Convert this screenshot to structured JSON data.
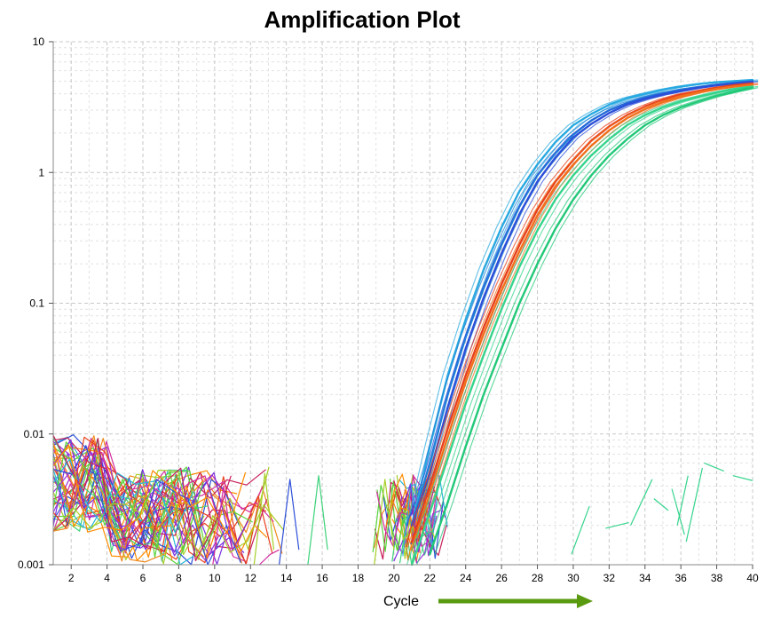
{
  "chart_data": {
    "type": "line",
    "title": "Amplification Plot",
    "xlabel": "Cycle",
    "ylabel": "",
    "xlim": [
      1,
      40
    ],
    "ylim": [
      0.001,
      10
    ],
    "yscale": "log",
    "x_ticks": [
      "2",
      "4",
      "6",
      "8",
      "10",
      "12",
      "14",
      "16",
      "18",
      "20",
      "22",
      "24",
      "26",
      "28",
      "30",
      "32",
      "34",
      "36",
      "38",
      "40"
    ],
    "y_ticks": [
      "0.001",
      "0.01",
      "0.1",
      "1",
      "10"
    ],
    "grid": true,
    "legend": "none",
    "series": [
      {
        "color": "#29a9e0",
        "x": [
          21,
          22,
          23,
          24,
          25,
          26,
          27,
          28,
          29,
          30,
          31,
          32,
          33,
          34,
          35,
          36,
          37,
          38,
          39,
          40
        ],
        "y": [
          0.002,
          0.008,
          0.028,
          0.075,
          0.18,
          0.38,
          0.72,
          1.15,
          1.7,
          2.3,
          2.8,
          3.3,
          3.7,
          4.0,
          4.3,
          4.55,
          4.75,
          4.9,
          5.0,
          5.1
        ]
      },
      {
        "color": "#1f7fd8",
        "x": [
          21,
          22,
          23,
          24,
          25,
          26,
          27,
          28,
          29,
          30,
          31,
          32,
          33,
          34,
          35,
          36,
          37,
          38,
          39,
          40
        ],
        "y": [
          0.002,
          0.006,
          0.02,
          0.055,
          0.13,
          0.28,
          0.55,
          0.95,
          1.4,
          1.95,
          2.5,
          3.0,
          3.4,
          3.75,
          4.05,
          4.3,
          4.5,
          4.7,
          4.85,
          5.0
        ]
      },
      {
        "color": "#2c4fd8",
        "x": [
          21,
          22,
          23,
          24,
          25,
          26,
          27,
          28,
          29,
          30,
          31,
          32,
          33,
          34,
          35,
          36,
          37,
          38,
          39,
          40
        ],
        "y": [
          0.002,
          0.005,
          0.016,
          0.045,
          0.11,
          0.24,
          0.48,
          0.85,
          1.3,
          1.85,
          2.35,
          2.85,
          3.3,
          3.65,
          3.95,
          4.2,
          4.45,
          4.65,
          4.8,
          4.95
        ]
      },
      {
        "color": "#e8401c",
        "x": [
          21,
          22,
          23,
          24,
          25,
          26,
          27,
          28,
          29,
          30,
          31,
          32,
          33,
          34,
          35,
          36,
          37,
          38,
          39,
          40
        ],
        "y": [
          0.0015,
          0.004,
          0.011,
          0.028,
          0.065,
          0.14,
          0.28,
          0.52,
          0.85,
          1.25,
          1.75,
          2.25,
          2.75,
          3.2,
          3.6,
          3.95,
          4.2,
          4.45,
          4.65,
          4.8
        ]
      },
      {
        "color": "#f0701c",
        "x": [
          21,
          22,
          23,
          24,
          25,
          26,
          27,
          28,
          29,
          30,
          31,
          32,
          33,
          34,
          35,
          36,
          37,
          38,
          39,
          40
        ],
        "y": [
          0.0013,
          0.0035,
          0.0095,
          0.025,
          0.058,
          0.125,
          0.25,
          0.47,
          0.78,
          1.15,
          1.6,
          2.1,
          2.6,
          3.05,
          3.45,
          3.8,
          4.1,
          4.35,
          4.55,
          4.7
        ]
      },
      {
        "color": "#35d48c",
        "x": [
          21,
          22,
          23,
          24,
          25,
          26,
          27,
          28,
          29,
          30,
          31,
          32,
          33,
          34,
          35,
          36,
          37,
          38,
          39,
          40
        ],
        "y": [
          0.001,
          0.0025,
          0.0065,
          0.017,
          0.04,
          0.09,
          0.19,
          0.36,
          0.62,
          0.95,
          1.35,
          1.8,
          2.3,
          2.75,
          3.15,
          3.5,
          3.8,
          4.1,
          4.35,
          4.55
        ]
      },
      {
        "color": "#22c878",
        "x": [
          22,
          23,
          24,
          25,
          26,
          27,
          28,
          29,
          30,
          31,
          32,
          33,
          34,
          35,
          36,
          37,
          38,
          39,
          40
        ],
        "y": [
          0.0012,
          0.003,
          0.008,
          0.02,
          0.045,
          0.1,
          0.2,
          0.37,
          0.62,
          0.95,
          1.35,
          1.8,
          2.3,
          2.75,
          3.15,
          3.5,
          3.85,
          4.15,
          4.45
        ]
      }
    ]
  },
  "arrow": {
    "color": "#5a9a10"
  }
}
